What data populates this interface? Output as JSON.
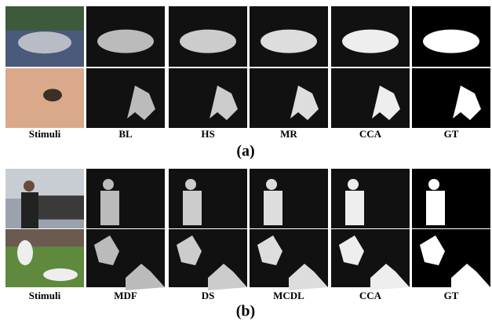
{
  "panels": [
    {
      "columns": [
        "Stimuli",
        "BL",
        "HS",
        "MR",
        "CCA",
        "GT"
      ],
      "label": "(a)"
    },
    {
      "columns": [
        "Stimuli",
        "MDF",
        "DS",
        "MCDL",
        "CCA",
        "GT"
      ],
      "label": "(b)"
    }
  ]
}
